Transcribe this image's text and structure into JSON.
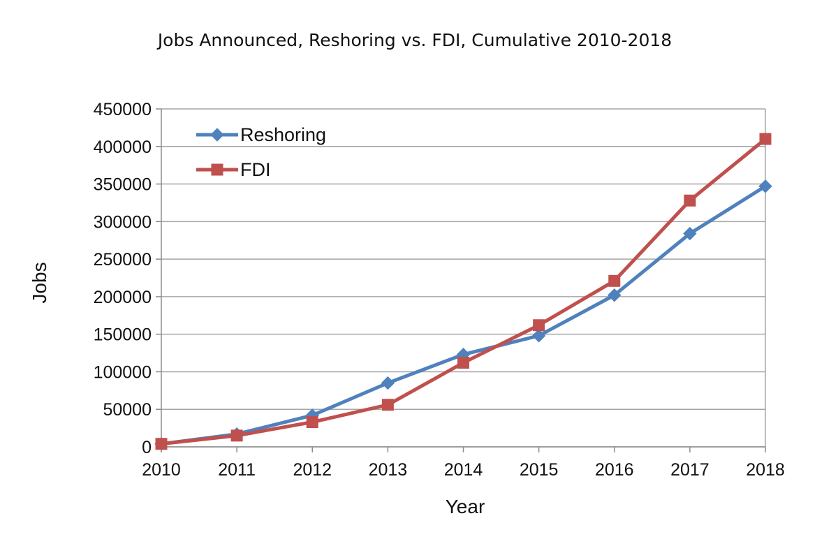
{
  "chart_data": {
    "type": "line",
    "title": "Jobs Announced, Reshoring vs. FDI, Cumulative 2010-2018",
    "xlabel": "Year",
    "ylabel": "Jobs",
    "x": [
      "2010",
      "2011",
      "2012",
      "2013",
      "2014",
      "2015",
      "2016",
      "2017",
      "2018"
    ],
    "ylim": [
      0,
      450000
    ],
    "yticks": [
      "0",
      "50000",
      "100000",
      "150000",
      "200000",
      "250000",
      "300000",
      "350000",
      "400000",
      "450000"
    ],
    "grid": true,
    "legend_position": "top-left",
    "series": [
      {
        "name": "Reshoring",
        "color": "#4f81bd",
        "marker": "diamond",
        "values": [
          4000,
          17000,
          42000,
          85000,
          123000,
          148000,
          202000,
          284000,
          347000
        ]
      },
      {
        "name": "FDI",
        "color": "#c0504d",
        "marker": "square",
        "values": [
          4000,
          15000,
          33000,
          56000,
          112000,
          162000,
          221000,
          328000,
          410000
        ]
      }
    ]
  }
}
